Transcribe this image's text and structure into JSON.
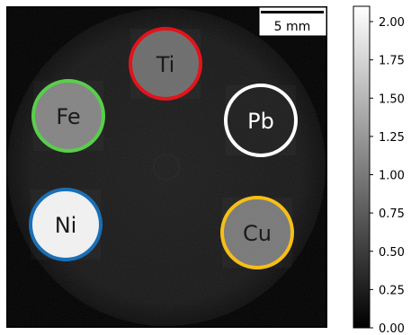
{
  "scale_bar": {
    "label": "5 mm"
  },
  "samples": [
    {
      "id": "ti",
      "label": "Ti",
      "outline_color": "#e3131b",
      "text_color": "#1a1a1a",
      "fill_gray": "#6e6e6e"
    },
    {
      "id": "fe",
      "label": "Fe",
      "outline_color": "#58cf4a",
      "text_color": "#1a1a1a",
      "fill_gray": "#858585"
    },
    {
      "id": "pb",
      "label": "Pb",
      "outline_color": "#ffffff",
      "text_color": "#ffffff",
      "fill_gray": "#202020"
    },
    {
      "id": "ni",
      "label": "Ni",
      "outline_color": "#1a6fb6",
      "text_color": "#1a1a1a",
      "fill_gray": "#f2f2f2"
    },
    {
      "id": "cu",
      "label": "Cu",
      "outline_color": "#f6bf16",
      "text_color": "#1a1a1a",
      "fill_gray": "#7a7a7a"
    }
  ],
  "colorbar": {
    "min": 0.0,
    "max": 2.1,
    "ticks": [
      "0.00",
      "0.25",
      "0.50",
      "0.75",
      "1.00",
      "1.25",
      "1.50",
      "1.75",
      "2.00"
    ],
    "tick_values": [
      0.0,
      0.25,
      0.5,
      0.75,
      1.0,
      1.25,
      1.5,
      1.75,
      2.0
    ],
    "colormap": "gray"
  }
}
